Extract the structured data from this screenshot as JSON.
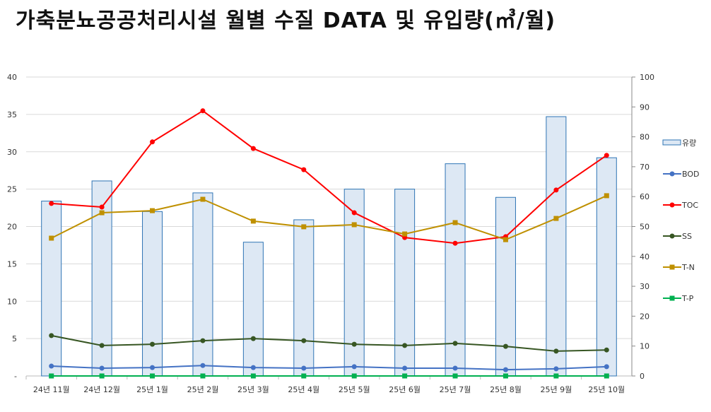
{
  "chart_data": {
    "type": "bar+line",
    "title": "가축분뇨공공처리시설 월별 수질 DATA 및 유입량(㎥/월)",
    "categories": [
      "24년 11월",
      "24년 12월",
      "25년 1월",
      "25년 2월",
      "25년 3월",
      "25년 4월",
      "25년 5월",
      "25년 6월",
      "25년 7월",
      "25년 8월",
      "25년 9월",
      "25년 10월"
    ],
    "left_axis": {
      "ylim": [
        0,
        40
      ],
      "ticks": [
        "-",
        "5",
        "10",
        "15",
        "20",
        "25",
        "30",
        "35",
        "40"
      ]
    },
    "right_axis": {
      "ylim": [
        0,
        100
      ],
      "ticks": [
        "0",
        "10",
        "20",
        "30",
        "40",
        "50",
        "60",
        "70",
        "80",
        "90",
        "100"
      ]
    },
    "grid": true,
    "legend_position": "right",
    "series": [
      {
        "name": "유량",
        "type": "bar",
        "axis": "left",
        "color": "#DDE8F4",
        "stroke": "#2E74B5",
        "values": [
          23.4,
          26.1,
          22.0,
          24.5,
          17.9,
          20.9,
          25.0,
          25.0,
          28.4,
          23.9,
          34.7,
          29.2
        ]
      },
      {
        "name": "BOD",
        "type": "line",
        "axis": "right",
        "color": "#4472C4",
        "marker": "circle",
        "values": [
          3.3,
          2.6,
          2.8,
          3.5,
          2.8,
          2.6,
          3.1,
          2.6,
          2.6,
          2.1,
          2.4,
          3.1
        ]
      },
      {
        "name": "TOC",
        "type": "line",
        "axis": "right",
        "color": "#FF0000",
        "marker": "circle",
        "values": [
          57.7,
          56.5,
          78.3,
          88.7,
          76.1,
          69.0,
          54.6,
          46.3,
          44.4,
          46.6,
          62.2,
          73.8
        ]
      },
      {
        "name": "SS",
        "type": "line",
        "axis": "right",
        "color": "#375623",
        "marker": "circle",
        "values": [
          13.5,
          10.2,
          10.6,
          11.8,
          12.5,
          11.8,
          10.6,
          10.2,
          10.9,
          9.9,
          8.3,
          8.7
        ]
      },
      {
        "name": "T-N",
        "type": "line",
        "axis": "right",
        "color": "#BF9000",
        "marker": "square",
        "values": [
          46.1,
          54.6,
          55.3,
          59.1,
          51.8,
          49.9,
          50.6,
          47.5,
          51.3,
          45.6,
          52.7,
          60.3
        ]
      },
      {
        "name": "T-P",
        "type": "line",
        "axis": "right",
        "color": "#00B050",
        "marker": "square",
        "values": [
          0,
          0,
          0,
          0,
          0,
          0,
          0,
          0,
          0,
          0,
          0,
          0
        ]
      }
    ]
  }
}
